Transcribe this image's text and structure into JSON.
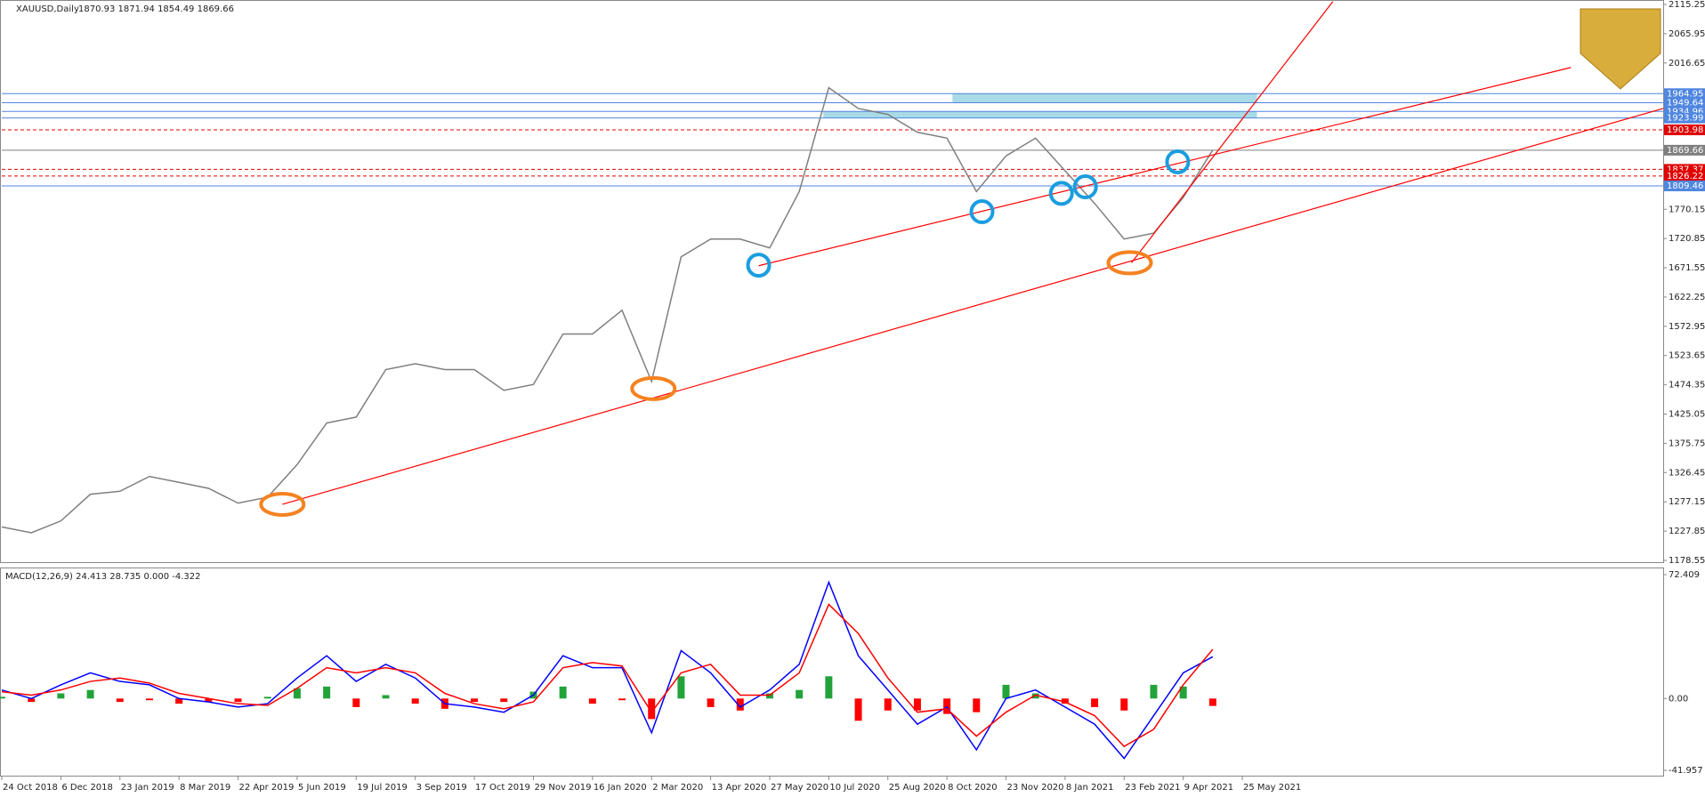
{
  "chart_data": [
    {
      "type": "line",
      "title": "XAUUSD,Daily",
      "subtitle": "1870.93 1871.94 1854.49 1869.66",
      "color": "#7f7f7f",
      "x": [
        0,
        16,
        32,
        48,
        64,
        80,
        96,
        112,
        128,
        144,
        160,
        176,
        192,
        208,
        224,
        240,
        256,
        272,
        288,
        304,
        320,
        336,
        352,
        368,
        384,
        400,
        416,
        432,
        448,
        464,
        480,
        496,
        512,
        528,
        544,
        560,
        576,
        592,
        608,
        624,
        640,
        656
      ],
      "values": [
        1235,
        1225,
        1245,
        1290,
        1295,
        1320,
        1310,
        1300,
        1275,
        1285,
        1340,
        1410,
        1420,
        1500,
        1510,
        1500,
        1500,
        1465,
        1475,
        1560,
        1560,
        1600,
        1480,
        1690,
        1720,
        1720,
        1705,
        1800,
        1975,
        1940,
        1930,
        1900,
        1890,
        1800,
        1860,
        1890,
        1835,
        1780,
        1720,
        1730,
        1790,
        1870
      ],
      "xlim": [
        0,
        900
      ],
      "xticks": [
        {
          "value": 0,
          "label": "24 Oct 2018"
        },
        {
          "value": 32,
          "label": "6 Dec 2018"
        },
        {
          "value": 64,
          "label": "23 Jan 2019"
        },
        {
          "value": 96,
          "label": "8 Mar 2019"
        },
        {
          "value": 128,
          "label": "22 Apr 2019"
        },
        {
          "value": 160,
          "label": "5 Jun 2019"
        },
        {
          "value": 192,
          "label": "19 Jul 2019"
        },
        {
          "value": 224,
          "label": "3 Sep 2019"
        },
        {
          "value": 256,
          "label": "17 Oct 2019"
        },
        {
          "value": 288,
          "label": "29 Nov 2019"
        },
        {
          "value": 320,
          "label": "16 Jan 2020"
        },
        {
          "value": 352,
          "label": "2 Mar 2020"
        },
        {
          "value": 384,
          "label": "13 Apr 2020"
        },
        {
          "value": 416,
          "label": "27 May 2020"
        },
        {
          "value": 448,
          "label": "10 Jul 2020"
        },
        {
          "value": 480,
          "label": "25 Aug 2020"
        },
        {
          "value": 512,
          "label": "8 Oct 2020"
        },
        {
          "value": 544,
          "label": "23 Nov 2020"
        },
        {
          "value": 576,
          "label": "8 Jan 2021"
        },
        {
          "value": 608,
          "label": "23 Feb 2021"
        },
        {
          "value": 640,
          "label": "9 Apr 2021"
        },
        {
          "value": 672,
          "label": "25 May 2021"
        }
      ],
      "ylim": [
        1178.55,
        2115.25
      ],
      "yticks": [
        2115.25,
        2065.95,
        2016.65,
        1770.15,
        1720.85,
        1671.55,
        1622.25,
        1572.95,
        1523.65,
        1474.35,
        1425.05,
        1375.75,
        1326.45,
        1277.15,
        1227.85,
        1178.55
      ],
      "levels": [
        {
          "value": 1964.95,
          "color": "#4f86e0"
        },
        {
          "value": 1949.64,
          "color": "#4f86e0"
        },
        {
          "value": 1934.96,
          "color": "#4f86e0"
        },
        {
          "value": 1923.99,
          "color": "#4f86e0"
        },
        {
          "value": 1903.98,
          "color": "#e00000"
        },
        {
          "value": 1869.66,
          "color": "#7f7f7f"
        },
        {
          "value": 1837.37,
          "color": "#e00000"
        },
        {
          "value": 1826.22,
          "color": "#e00000"
        },
        {
          "value": 1809.46,
          "color": "#4f86e0"
        }
      ],
      "zones": [
        {
          "x": [
            515,
            680
          ],
          "y": [
            1949.64,
            1964.95
          ],
          "color": "#a8dbe6"
        },
        {
          "x": [
            445,
            680
          ],
          "y": [
            1923.99,
            1934.96
          ],
          "color": "#a8dbe6"
        }
      ],
      "trendlines": [
        {
          "x": [
            152,
            900
          ],
          "y": [
            1273,
            1940
          ],
          "color": "#ff0000"
        },
        {
          "x": [
            410,
            850
          ],
          "y": [
            1675,
            2009
          ],
          "color": "#ff0000"
        },
        {
          "x": [
            612,
            721
          ],
          "y": [
            1680,
            2120
          ],
          "color": "#ff0000"
        }
      ],
      "highlights": [
        {
          "x": 152,
          "y": 1273,
          "color": "#f58220"
        },
        {
          "x": 353,
          "y": 1468,
          "color": "#f58220"
        },
        {
          "x": 611,
          "y": 1680,
          "color": "#f58220"
        },
        {
          "x": 410,
          "y": 1676,
          "color": "#1a9de0"
        },
        {
          "x": 531,
          "y": 1766,
          "color": "#1a9de0"
        },
        {
          "x": 574,
          "y": 1797,
          "color": "#1a9de0"
        },
        {
          "x": 587,
          "y": 1808,
          "color": "#1a9de0"
        },
        {
          "x": 637,
          "y": 1850,
          "color": "#1a9de0"
        }
      ]
    },
    {
      "type": "macd",
      "title": "MACD(12,26,9) 24.413 28.735 0.000 -4.322",
      "x": [
        0,
        16,
        32,
        48,
        64,
        80,
        96,
        112,
        128,
        144,
        160,
        176,
        192,
        208,
        224,
        240,
        256,
        272,
        288,
        304,
        320,
        336,
        352,
        368,
        384,
        400,
        416,
        432,
        448,
        464,
        480,
        496,
        512,
        528,
        544,
        560,
        576,
        592,
        608,
        624,
        640,
        656
      ],
      "xlim": [
        0,
        900
      ],
      "ylim": [
        -41.957,
        72.409
      ],
      "yticks": [
        72.409,
        {
          "value": 0,
          "label": "0.00"
        },
        -41.957
      ],
      "series": [
        {
          "color": "#0000ff",
          "values": [
            5,
            0,
            8,
            15,
            10,
            8,
            0,
            -2,
            -5,
            -3,
            12,
            25,
            10,
            20,
            12,
            -3,
            -5,
            -8,
            2,
            25,
            18,
            18,
            -20,
            28,
            15,
            -5,
            5,
            20,
            68,
            25,
            5,
            -15,
            -5,
            -30,
            0,
            5,
            -5,
            -15,
            -35,
            -10,
            15,
            24.413
          ]
        },
        {
          "color": "#ff0000",
          "values": [
            4,
            2,
            5,
            10,
            12,
            9,
            3,
            0,
            -3,
            -4,
            6,
            18,
            15,
            18,
            15,
            3,
            -3,
            -6,
            -2,
            18,
            21,
            19,
            -8,
            15,
            20,
            2,
            2,
            15,
            55,
            38,
            12,
            -8,
            -6,
            -22,
            -8,
            2,
            -2,
            -10,
            -28,
            -18,
            8,
            28.735
          ]
        }
      ],
      "histogram": {
        "up_color": "#22a33a",
        "down_color": "#ff0000",
        "values": [
          1,
          -2,
          3,
          5,
          -2,
          -1,
          -3,
          -2,
          -2,
          1,
          6,
          7,
          -5,
          2,
          -3,
          -6,
          -2,
          -2,
          4,
          7,
          -3,
          -1,
          -12,
          13,
          -5,
          -7,
          3,
          5,
          13,
          -13,
          -7,
          -7,
          -9,
          -8,
          8,
          3,
          -3,
          -5,
          -7,
          8,
          7,
          -4.322
        ]
      }
    }
  ]
}
